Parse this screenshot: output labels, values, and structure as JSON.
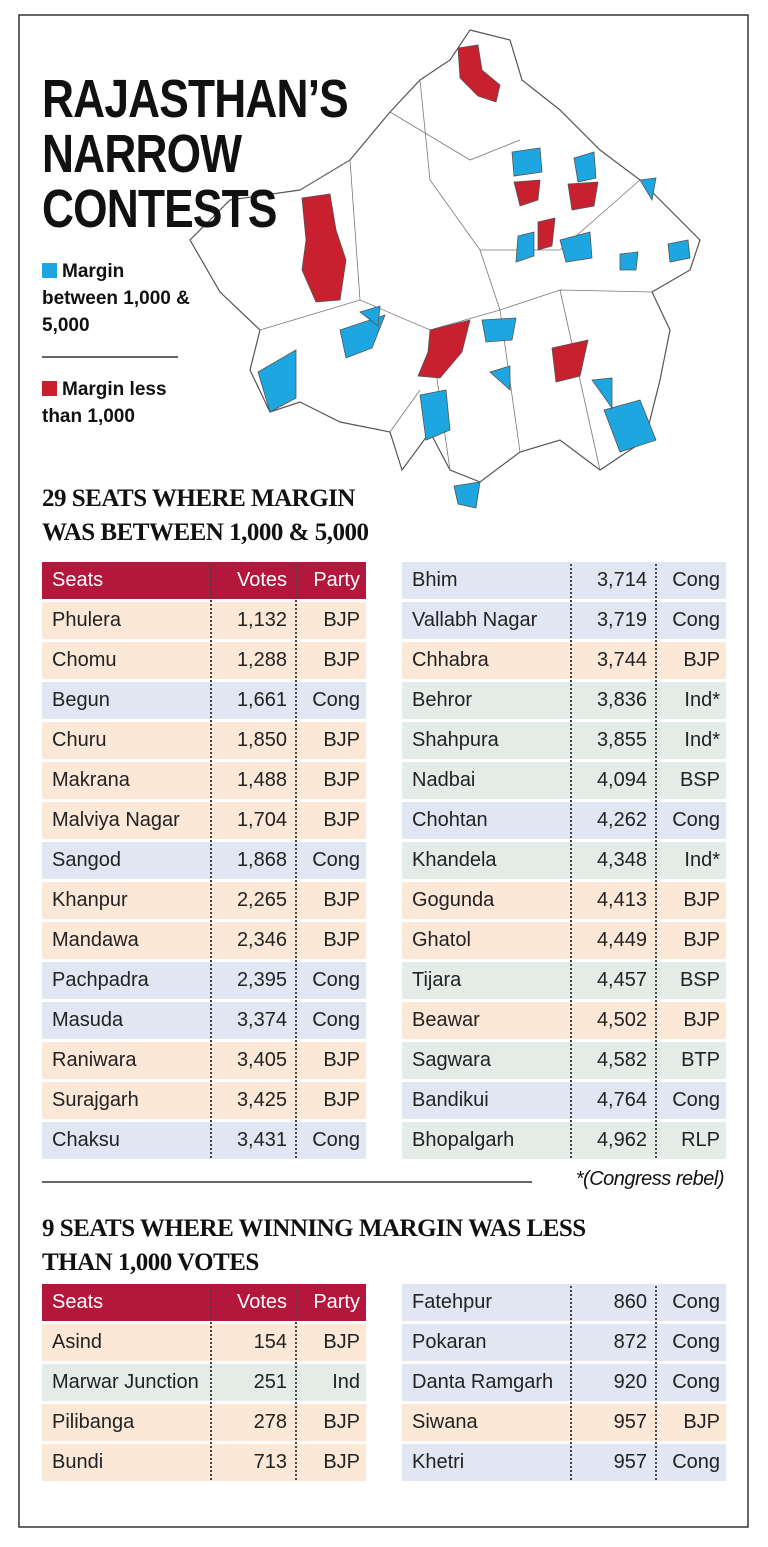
{
  "title_lines": [
    "RAJASTHAN’S",
    "NARROW",
    "CONTESTS"
  ],
  "legend": [
    {
      "label": "Margin between 1,000 & 5,000",
      "color": "#1ea6e0"
    },
    {
      "label": "Margin less than 1,000",
      "color": "#c8202f"
    }
  ],
  "row_colors": {
    "BJP": "#fbe8d6",
    "Cong": "#e0e7f3",
    "Ind": "#e3ece7",
    "Ind*": "#e3ece7",
    "BSP": "#e3ece7",
    "BTP": "#e3ece7",
    "RLP": "#e3ece7"
  },
  "header_color": "#b3173b",
  "section1": {
    "heading_lines": [
      "29 SEATS WHERE MARGIN",
      "WAS BETWEEN  1,000 & 5,000"
    ],
    "columns": [
      "Seats",
      "Votes",
      "Party"
    ],
    "rows": [
      [
        "Phulera",
        "1,132",
        "BJP"
      ],
      [
        "Chomu",
        "1,288",
        "BJP"
      ],
      [
        "Begun",
        "1,661",
        "Cong"
      ],
      [
        "Churu",
        "1,850",
        "BJP"
      ],
      [
        "Makrana",
        "1,488",
        "BJP"
      ],
      [
        "Malviya Nagar",
        "1,704",
        "BJP"
      ],
      [
        "Sangod",
        "1,868",
        "Cong"
      ],
      [
        "Khanpur",
        "2,265",
        "BJP"
      ],
      [
        "Mandawa",
        "2,346",
        "BJP"
      ],
      [
        "Pachpadra",
        "2,395",
        "Cong"
      ],
      [
        "Masuda",
        "3,374",
        "Cong"
      ],
      [
        "Raniwara",
        "3,405",
        "BJP"
      ],
      [
        "Surajgarh",
        "3,425",
        "BJP"
      ],
      [
        "Chaksu",
        "3,431",
        "Cong"
      ],
      [
        "Bhim",
        "3,714",
        "Cong"
      ],
      [
        "Vallabh Nagar",
        "3,719",
        "Cong"
      ],
      [
        "Chhabra",
        "3,744",
        "BJP"
      ],
      [
        "Behror",
        "3,836",
        "Ind*"
      ],
      [
        "Shahpura",
        "3,855",
        "Ind*"
      ],
      [
        "Nadbai",
        "4,094",
        "BSP"
      ],
      [
        "Chohtan",
        "4,262",
        "Cong"
      ],
      [
        "Khandela",
        "4,348",
        "Ind*"
      ],
      [
        "Gogunda",
        "4,413",
        "BJP"
      ],
      [
        "Ghatol",
        "4,449",
        "BJP"
      ],
      [
        "Tijara",
        "4,457",
        "BSP"
      ],
      [
        "Beawar",
        "4,502",
        "BJP"
      ],
      [
        "Sagwara",
        "4,582",
        "BTP"
      ],
      [
        "Bandikui",
        "4,764",
        "Cong"
      ],
      [
        "Bhopalgarh",
        "4,962",
        "RLP"
      ]
    ],
    "footnote": "*(Congress rebel)"
  },
  "section2": {
    "heading_lines": [
      "9 SEATS WHERE WINNING MARGIN WAS LESS",
      "THAN 1,000 VOTES"
    ],
    "columns": [
      "Seats",
      "Votes",
      "Party"
    ],
    "rows": [
      [
        "Asind",
        "154",
        "BJP"
      ],
      [
        "Marwar Junction",
        "251",
        "Ind"
      ],
      [
        "Pilibanga",
        "278",
        "BJP"
      ],
      [
        "Bundi",
        "713",
        "BJP"
      ],
      [
        "Fatehpur",
        "860",
        "Cong"
      ],
      [
        "Pokaran",
        "872",
        "Cong"
      ],
      [
        "Danta Ramgarh",
        "920",
        "Cong"
      ],
      [
        "Siwana",
        "957",
        "BJP"
      ],
      [
        "Khetri",
        "957",
        "Cong"
      ]
    ]
  }
}
